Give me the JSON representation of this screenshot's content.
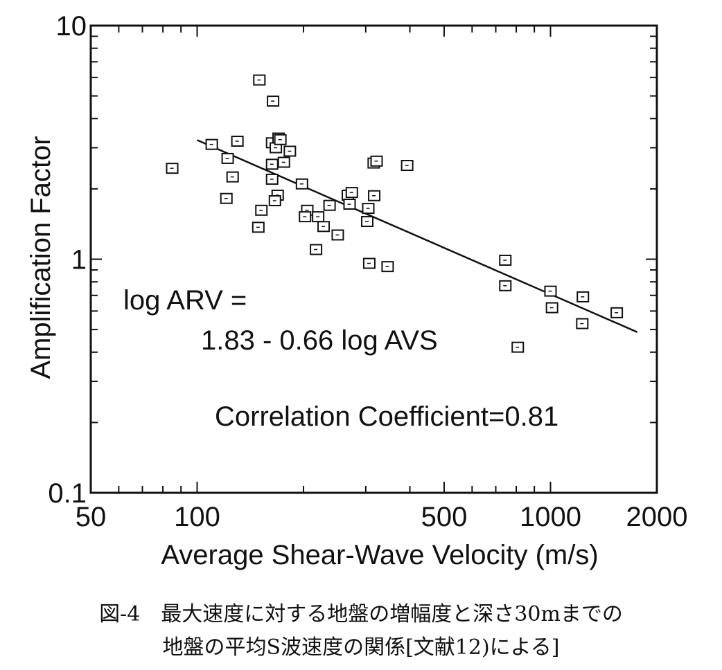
{
  "chart_data": {
    "type": "scatter",
    "x_scale": "log",
    "y_scale": "log",
    "xlim": [
      50,
      2000
    ],
    "ylim": [
      0.1,
      10
    ],
    "xlabel": "Average Shear-Wave Velocity (m/s)",
    "ylabel": "Amplification Factor",
    "x_tick_labels": [
      {
        "value": 50,
        "label": "50"
      },
      {
        "value": 100,
        "label": "100"
      },
      {
        "value": 500,
        "label": "500"
      },
      {
        "value": 1000,
        "label": "1000"
      },
      {
        "value": 2000,
        "label": "2000"
      }
    ],
    "y_tick_labels": [
      {
        "value": 0.1,
        "label": "0.1"
      },
      {
        "value": 1,
        "label": "1"
      },
      {
        "value": 10,
        "label": "10"
      }
    ],
    "points": [
      {
        "x": 85,
        "y": 2.45
      },
      {
        "x": 110,
        "y": 3.1
      },
      {
        "x": 122,
        "y": 2.7
      },
      {
        "x": 126,
        "y": 2.25
      },
      {
        "x": 130,
        "y": 3.2
      },
      {
        "x": 121,
        "y": 1.82
      },
      {
        "x": 150,
        "y": 5.85
      },
      {
        "x": 149,
        "y": 1.37
      },
      {
        "x": 152,
        "y": 1.62
      },
      {
        "x": 164,
        "y": 4.75
      },
      {
        "x": 163,
        "y": 3.15
      },
      {
        "x": 167,
        "y": 3.0
      },
      {
        "x": 170,
        "y": 3.3
      },
      {
        "x": 172,
        "y": 3.25
      },
      {
        "x": 176,
        "y": 2.6
      },
      {
        "x": 183,
        "y": 2.9
      },
      {
        "x": 163,
        "y": 2.55
      },
      {
        "x": 163,
        "y": 2.2
      },
      {
        "x": 169,
        "y": 1.88
      },
      {
        "x": 166,
        "y": 1.78
      },
      {
        "x": 198,
        "y": 2.1
      },
      {
        "x": 205,
        "y": 1.62
      },
      {
        "x": 202,
        "y": 1.52
      },
      {
        "x": 220,
        "y": 1.52
      },
      {
        "x": 228,
        "y": 1.38
      },
      {
        "x": 217,
        "y": 1.1
      },
      {
        "x": 237,
        "y": 1.7
      },
      {
        "x": 250,
        "y": 1.27
      },
      {
        "x": 267,
        "y": 1.88
      },
      {
        "x": 274,
        "y": 1.93
      },
      {
        "x": 270,
        "y": 1.72
      },
      {
        "x": 305,
        "y": 1.65
      },
      {
        "x": 303,
        "y": 1.45
      },
      {
        "x": 307,
        "y": 0.96
      },
      {
        "x": 317,
        "y": 1.87
      },
      {
        "x": 316,
        "y": 2.58
      },
      {
        "x": 322,
        "y": 2.63
      },
      {
        "x": 346,
        "y": 0.93
      },
      {
        "x": 393,
        "y": 2.52
      },
      {
        "x": 745,
        "y": 0.99
      },
      {
        "x": 745,
        "y": 0.77
      },
      {
        "x": 808,
        "y": 0.42
      },
      {
        "x": 1000,
        "y": 0.73
      },
      {
        "x": 1010,
        "y": 0.62
      },
      {
        "x": 1235,
        "y": 0.69
      },
      {
        "x": 1230,
        "y": 0.53
      },
      {
        "x": 1540,
        "y": 0.59
      }
    ],
    "regression_line": {
      "x": [
        100,
        1760
      ],
      "equation": "log ARV = 1.83 - 0.66 log AVS"
    },
    "annotations": {
      "equation_line_1": "log ARV =",
      "equation_line_2": "1.83 - 0.66 log AVS",
      "correlation": "Correlation Coefficient=0.81"
    },
    "marker": "open-square",
    "grid": false
  },
  "caption": {
    "figure_number": "図-4",
    "line_1": "最大速度に対する地盤の増幅度と深さ30mまでの",
    "line_2": "地盤の平均S波速度の関係[文献12)による]"
  }
}
